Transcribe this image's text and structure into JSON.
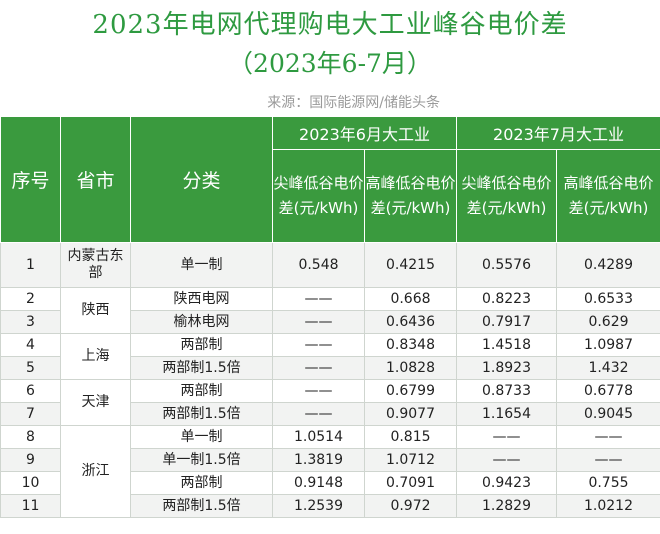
{
  "title_line1": "2023年电网代理购电大工业峰谷电价差",
  "title_line2": "（2023年6-7月）",
  "source": "来源：国际能源网/储能头条",
  "headers": {
    "seq": "序号",
    "province": "省市",
    "category": "分类",
    "june": "2023年6月大工业",
    "july": "2023年7月大工业",
    "peak_valley": "尖峰低谷电价差(元/kWh)",
    "high_valley": "高峰低谷电价差(元/kWh)"
  },
  "rows": [
    {
      "seq": "1",
      "province": "内蒙古东部",
      "category": "单一制",
      "jun_peak": "0.548",
      "jun_high": "0.4215",
      "jul_peak": "0.5576",
      "jul_high": "0.4289"
    },
    {
      "seq": "2",
      "province": "陕西",
      "category": "陕西电网",
      "jun_peak": "——",
      "jun_high": "0.668",
      "jul_peak": "0.8223",
      "jul_high": "0.6533"
    },
    {
      "seq": "3",
      "province": "",
      "category": "榆林电网",
      "jun_peak": "——",
      "jun_high": "0.6436",
      "jul_peak": "0.7917",
      "jul_high": "0.629"
    },
    {
      "seq": "4",
      "province": "上海",
      "category": "两部制",
      "jun_peak": "——",
      "jun_high": "0.8348",
      "jul_peak": "1.4518",
      "jul_high": "1.0987"
    },
    {
      "seq": "5",
      "province": "",
      "category": "两部制1.5倍",
      "jun_peak": "——",
      "jun_high": "1.0828",
      "jul_peak": "1.8923",
      "jul_high": "1.432"
    },
    {
      "seq": "6",
      "province": "天津",
      "category": "两部制",
      "jun_peak": "——",
      "jun_high": "0.6799",
      "jul_peak": "0.8733",
      "jul_high": "0.6778"
    },
    {
      "seq": "7",
      "province": "",
      "category": "两部制1.5倍",
      "jun_peak": "——",
      "jun_high": "0.9077",
      "jul_peak": "1.1654",
      "jul_high": "0.9045"
    },
    {
      "seq": "8",
      "province": "浙江",
      "category": "单一制",
      "jun_peak": "1.0514",
      "jun_high": "0.815",
      "jul_peak": "——",
      "jul_high": "——"
    },
    {
      "seq": "9",
      "province": "",
      "category": "单一制1.5倍",
      "jun_peak": "1.3819",
      "jun_high": "1.0712",
      "jul_peak": "——",
      "jul_high": "——"
    },
    {
      "seq": "10",
      "province": "",
      "category": "两部制",
      "jun_peak": "0.9148",
      "jun_high": "0.7091",
      "jul_peak": "0.9423",
      "jul_high": "0.755"
    },
    {
      "seq": "11",
      "province": "",
      "category": "两部制1.5倍",
      "jun_peak": "1.2539",
      "jun_high": "0.972",
      "jul_peak": "1.2829",
      "jul_high": "1.0212"
    }
  ]
}
